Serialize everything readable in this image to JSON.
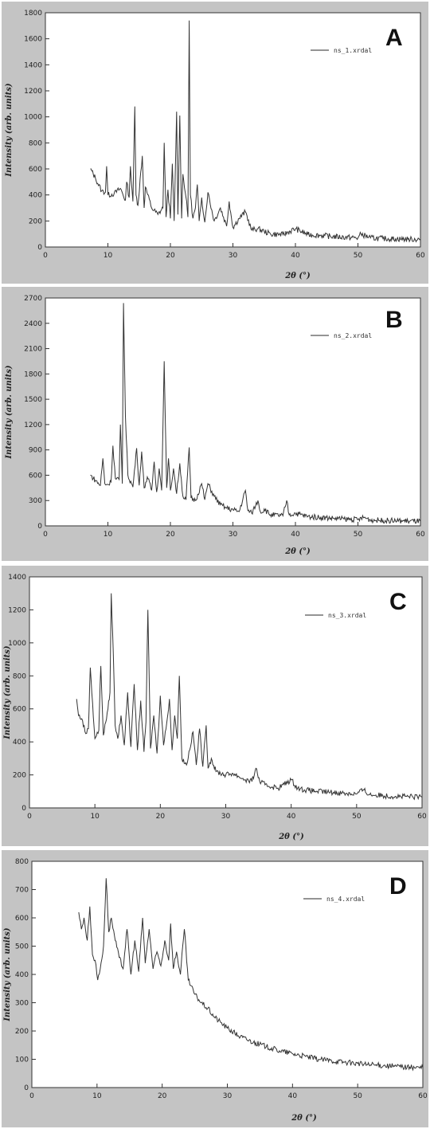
{
  "figure": {
    "panels": [
      {
        "letter": "A",
        "legend": "ns_1.xrdal",
        "ylabel": "Intensity (arb. units)",
        "xlabel": "2θ (°)",
        "yticks": [
          "0",
          "200",
          "400",
          "600",
          "800",
          "1000",
          "1200",
          "1400",
          "1600",
          "1800"
        ],
        "xticks": [
          "0",
          "10",
          "20",
          "30",
          "40",
          "50",
          "60"
        ]
      },
      {
        "letter": "B",
        "legend": "ns_2.xrdal",
        "ylabel": "Intensity (arb. units)",
        "xlabel": "2θ (°)",
        "yticks": [
          "0",
          "300",
          "600",
          "900",
          "1200",
          "1500",
          "1800",
          "2100",
          "2400",
          "2700"
        ],
        "xticks": [
          "0",
          "10",
          "20",
          "30",
          "40",
          "50",
          "60"
        ]
      },
      {
        "letter": "C",
        "legend": "ns_3.xrdal",
        "ylabel": "Intensity (arb. units)",
        "xlabel": "2θ (°)",
        "yticks": [
          "0",
          "200",
          "400",
          "600",
          "800",
          "1000",
          "1200",
          "1400"
        ],
        "xticks": [
          "0",
          "10",
          "20",
          "30",
          "40",
          "50",
          "60"
        ]
      },
      {
        "letter": "D",
        "legend": "ns_4.xrdal",
        "ylabel": "Intensity (arb. units)",
        "xlabel": "2θ (°)",
        "yticks": [
          "0",
          "100",
          "200",
          "300",
          "400",
          "500",
          "600",
          "700",
          "800"
        ],
        "xticks": [
          "0",
          "10",
          "20",
          "30",
          "40",
          "50",
          "60"
        ]
      }
    ]
  },
  "chart_data": [
    {
      "type": "line",
      "xlabel": "2θ (°)",
      "ylabel": "Intensity (arb. units)",
      "xlim": [
        0,
        60
      ],
      "ylim": [
        0,
        1800
      ],
      "grid": false,
      "legend_position": "top-right",
      "series": [
        {
          "name": "ns_1.xrdal",
          "color": "#333333",
          "x": [
            7.2,
            8,
            9,
            9.6,
            9.8,
            10,
            11,
            12,
            12.8,
            13,
            13.4,
            13.6,
            14,
            14.3,
            14.5,
            14.8,
            15.5,
            15.8,
            16,
            17,
            18,
            18.8,
            19,
            19.3,
            19.6,
            20,
            20.3,
            20.6,
            21,
            21.2,
            21.5,
            21.8,
            22,
            22.5,
            22.8,
            23,
            23.2,
            23.6,
            24,
            24.3,
            24.6,
            25,
            25.5,
            26,
            27,
            28,
            29,
            29.4,
            30,
            31,
            32,
            33,
            34,
            35,
            36,
            38,
            40,
            42,
            44,
            46,
            48,
            50,
            50.5,
            52,
            54,
            56,
            58,
            60
          ],
          "y": [
            600,
            530,
            430,
            420,
            620,
            400,
            410,
            450,
            360,
            500,
            380,
            620,
            350,
            1080,
            400,
            320,
            700,
            300,
            460,
            300,
            250,
            300,
            800,
            230,
            440,
            220,
            640,
            200,
            1040,
            250,
            1010,
            220,
            560,
            380,
            230,
            1740,
            400,
            220,
            300,
            480,
            200,
            380,
            190,
            420,
            200,
            300,
            160,
            350,
            150,
            220,
            270,
            130,
            140,
            120,
            100,
            95,
            140,
            95,
            90,
            80,
            75,
            70,
            100,
            70,
            65,
            62,
            60,
            58
          ]
        }
      ]
    },
    {
      "type": "line",
      "xlabel": "2θ (°)",
      "ylabel": "Intensity (arb. units)",
      "xlim": [
        0,
        60
      ],
      "ylim": [
        0,
        2700
      ],
      "grid": false,
      "legend_position": "top-right",
      "series": [
        {
          "name": "ns_2.xrdal",
          "color": "#333333",
          "x": [
            7.2,
            8,
            8.8,
            9.2,
            9.5,
            10,
            10.5,
            10.8,
            11.2,
            11.8,
            12,
            12.3,
            12.5,
            12.8,
            13.2,
            14,
            14.6,
            15,
            15.4,
            15.8,
            16.3,
            17,
            17.4,
            17.8,
            18.2,
            18.6,
            19,
            19.2,
            19.4,
            19.7,
            20,
            20.5,
            21,
            21.5,
            22,
            22.5,
            23,
            23.3,
            24,
            25,
            25.5,
            26,
            27,
            28,
            29,
            30,
            31,
            32,
            32.4,
            33,
            34,
            34.5,
            35,
            36,
            38,
            38.6,
            39,
            40,
            42,
            44,
            46,
            48,
            50,
            51,
            52,
            54,
            56,
            58,
            60
          ],
          "y": [
            600,
            540,
            480,
            800,
            500,
            490,
            520,
            950,
            560,
            550,
            1200,
            500,
            2640,
            1300,
            600,
            460,
            920,
            480,
            880,
            450,
            580,
            420,
            760,
            400,
            680,
            420,
            1950,
            1200,
            450,
            800,
            420,
            680,
            380,
            740,
            350,
            310,
            930,
            330,
            300,
            500,
            310,
            500,
            350,
            250,
            210,
            190,
            170,
            420,
            180,
            150,
            300,
            150,
            200,
            130,
            120,
            300,
            130,
            150,
            110,
            100,
            90,
            80,
            75,
            100,
            70,
            65,
            60,
            58,
            55
          ]
        }
      ]
    },
    {
      "type": "line",
      "xlabel": "2θ (°)",
      "ylabel": "Intensity (arb. units)",
      "xlim": [
        0,
        60
      ],
      "ylim": [
        0,
        1400
      ],
      "grid": false,
      "legend_position": "top-right",
      "series": [
        {
          "name": "ns_3.xrdal",
          "color": "#333333",
          "x": [
            7.2,
            7.5,
            8,
            8.6,
            9,
            9.3,
            10,
            10.6,
            10.9,
            11.3,
            12,
            12.3,
            12.5,
            12.8,
            13.1,
            13.5,
            14,
            14.5,
            15,
            15.5,
            16,
            16.5,
            17,
            17.5,
            17.8,
            18.1,
            18.5,
            19,
            19.5,
            20,
            20.5,
            21,
            21.4,
            21.8,
            22.2,
            22.6,
            22.9,
            23.3,
            24,
            25,
            25.5,
            26,
            26.5,
            27,
            27.3,
            27.8,
            28.5,
            30,
            31,
            32,
            33,
            34,
            34.6,
            35.2,
            36,
            38,
            40,
            41,
            42,
            44,
            46,
            48,
            50,
            51,
            52,
            54,
            56,
            58,
            60
          ],
          "y": [
            660,
            560,
            540,
            450,
            480,
            850,
            420,
            470,
            860,
            440,
            600,
            700,
            1300,
            950,
            500,
            420,
            560,
            380,
            700,
            370,
            750,
            350,
            650,
            340,
            520,
            1200,
            360,
            560,
            330,
            680,
            380,
            520,
            660,
            350,
            560,
            420,
            800,
            300,
            260,
            460,
            260,
            480,
            250,
            500,
            240,
            300,
            220,
            200,
            210,
            190,
            170,
            160,
            240,
            160,
            140,
            120,
            170,
            120,
            110,
            100,
            95,
            90,
            85,
            110,
            80,
            75,
            70,
            68,
            65
          ]
        }
      ]
    },
    {
      "type": "line",
      "xlabel": "2θ (°)",
      "ylabel": "Intensity (arb. units)",
      "xlim": [
        0,
        60
      ],
      "ylim": [
        0,
        800
      ],
      "grid": false,
      "legend_position": "top-right",
      "series": [
        {
          "name": "ns_4.xrdal",
          "color": "#333333",
          "x": [
            7.2,
            7.6,
            8,
            8.5,
            8.9,
            9.3,
            9.7,
            10.1,
            10.5,
            11,
            11.4,
            11.8,
            12.2,
            12.8,
            13.4,
            14,
            14.6,
            15.2,
            15.8,
            16.4,
            17,
            17.4,
            18,
            18.6,
            19.2,
            19.8,
            20.4,
            21,
            21.3,
            21.7,
            22.2,
            22.8,
            23.4,
            24,
            25,
            26,
            27,
            28,
            29,
            30,
            32,
            34,
            36,
            38,
            40,
            42,
            44,
            46,
            48,
            50,
            52,
            54,
            56,
            58,
            60
          ],
          "y": [
            620,
            560,
            600,
            520,
            640,
            470,
            450,
            380,
            420,
            500,
            740,
            550,
            600,
            520,
            460,
            420,
            560,
            400,
            520,
            410,
            600,
            440,
            560,
            420,
            480,
            430,
            520,
            450,
            580,
            420,
            480,
            400,
            560,
            380,
            330,
            300,
            280,
            250,
            230,
            210,
            180,
            160,
            145,
            130,
            120,
            110,
            100,
            95,
            90,
            85,
            80,
            78,
            75,
            72,
            70
          ]
        }
      ]
    }
  ]
}
